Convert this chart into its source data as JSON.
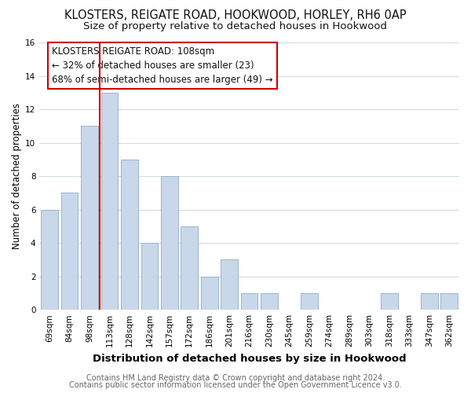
{
  "title": "KLOSTERS, REIGATE ROAD, HOOKWOOD, HORLEY, RH6 0AP",
  "subtitle": "Size of property relative to detached houses in Hookwood",
  "xlabel": "Distribution of detached houses by size in Hookwood",
  "ylabel": "Number of detached properties",
  "footer_line1": "Contains HM Land Registry data © Crown copyright and database right 2024.",
  "footer_line2": "Contains public sector information licensed under the Open Government Licence v3.0.",
  "bar_labels": [
    "69sqm",
    "84sqm",
    "98sqm",
    "113sqm",
    "128sqm",
    "142sqm",
    "157sqm",
    "172sqm",
    "186sqm",
    "201sqm",
    "216sqm",
    "230sqm",
    "245sqm",
    "259sqm",
    "274sqm",
    "289sqm",
    "303sqm",
    "318sqm",
    "333sqm",
    "347sqm",
    "362sqm"
  ],
  "bar_values": [
    6,
    7,
    11,
    13,
    9,
    4,
    8,
    5,
    2,
    3,
    1,
    1,
    0,
    1,
    0,
    0,
    0,
    1,
    0,
    1,
    1
  ],
  "bar_color": "#c8d8ea",
  "bar_edge_color": "#9ab4cc",
  "vline_color": "#cc0000",
  "vline_x_index": 3,
  "annotation_line1": "KLOSTERS REIGATE ROAD: 108sqm",
  "annotation_line2": "← 32% of detached houses are smaller (23)",
  "annotation_line3": "68% of semi-detached houses are larger (49) →",
  "ylim": [
    0,
    16
  ],
  "yticks": [
    0,
    2,
    4,
    6,
    8,
    10,
    12,
    14,
    16
  ],
  "bg_color": "#ffffff",
  "plot_bg_color": "#ffffff",
  "grid_color": "#d0dce8",
  "title_fontsize": 10.5,
  "subtitle_fontsize": 9.5,
  "xlabel_fontsize": 9.5,
  "ylabel_fontsize": 8.5,
  "tick_fontsize": 7.5,
  "annotation_fontsize": 8.5,
  "footer_fontsize": 7.0
}
